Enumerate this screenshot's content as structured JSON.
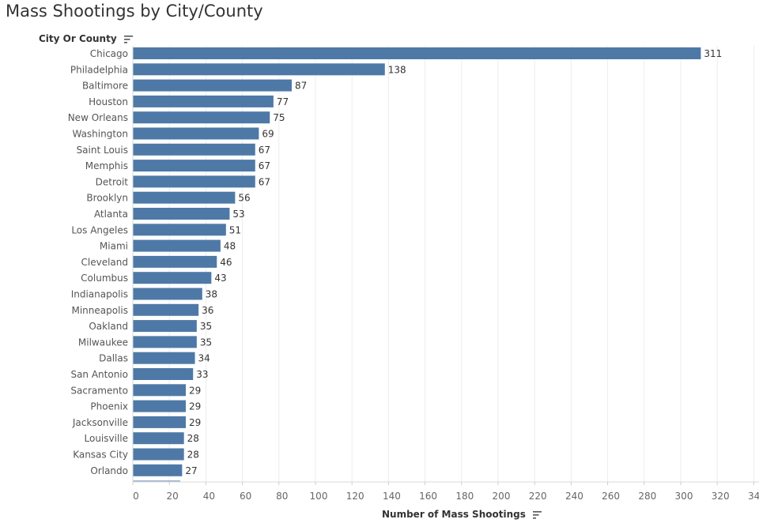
{
  "page": {
    "title": "Mass Shootings by City/County",
    "row_header": "City Or County",
    "axis_title": "Number of Mass Shootings",
    "sort_icon": "sort-descending-icon"
  },
  "chart_data": {
    "type": "bar",
    "orientation": "horizontal",
    "title": "Mass Shootings by City/County",
    "xlabel": "Number of Mass Shootings",
    "ylabel": "City Or County",
    "xlim": [
      0,
      340
    ],
    "xticks": [
      0,
      20,
      40,
      60,
      80,
      100,
      120,
      140,
      160,
      180,
      200,
      220,
      240,
      260,
      280,
      300,
      320,
      340
    ],
    "grid": true,
    "bar_color": "#4e79a7",
    "categories": [
      "Chicago",
      "Philadelphia",
      "Baltimore",
      "Houston",
      "New Orleans",
      "Washington",
      "Saint Louis",
      "Memphis",
      "Detroit",
      "Brooklyn",
      "Atlanta",
      "Los Angeles",
      "Miami",
      "Cleveland",
      "Columbus",
      "Indianapolis",
      "Minneapolis",
      "Oakland",
      "Milwaukee",
      "Dallas",
      "San Antonio",
      "Sacramento",
      "Phoenix",
      "Jacksonville",
      "Louisville",
      "Kansas City",
      "Orlando"
    ],
    "values": [
      311,
      138,
      87,
      77,
      75,
      69,
      67,
      67,
      67,
      56,
      53,
      51,
      48,
      46,
      43,
      38,
      36,
      35,
      35,
      34,
      33,
      29,
      29,
      29,
      28,
      28,
      27
    ]
  }
}
